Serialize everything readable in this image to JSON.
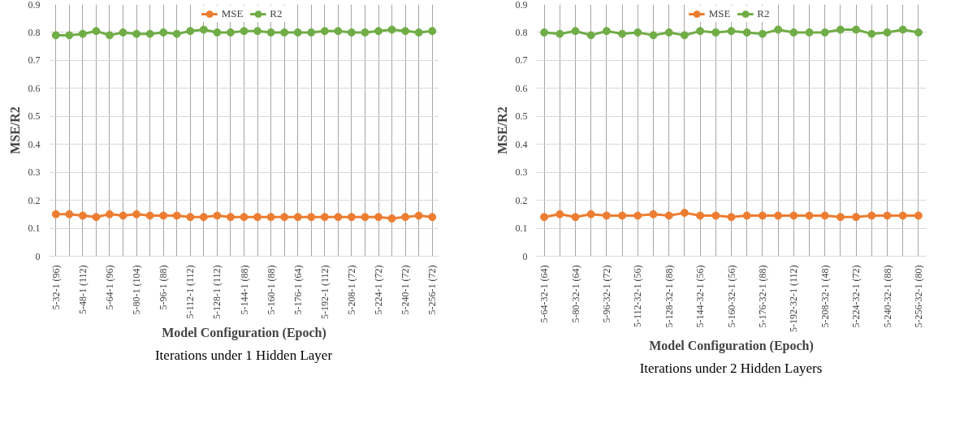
{
  "chart_data": [
    {
      "type": "line",
      "xlabel": "Model Configuration (Epoch)",
      "ylabel": "MSE/R2",
      "annotations": [
        "Iterations under 1 Hidden Layer"
      ],
      "categories": [
        "5-32-1 (96)",
        null,
        "5-48-1 (112)",
        null,
        "5-64-1 (96)",
        null,
        "5-80-1 (104)",
        null,
        "5-96-1 (88)",
        null,
        "5-112-1 (112)",
        null,
        "5-128-1 (112)",
        null,
        "5-144-1 (88)",
        null,
        "5-160-1 (88)",
        null,
        "5-176-1 (64)",
        null,
        "5-192-1 (112)",
        null,
        "5-208-1 (72)",
        null,
        "5-224-1 (72)",
        null,
        "5-240-1 (72)",
        null,
        "5-256-1 (72)"
      ],
      "series": [
        {
          "name": "MSE",
          "color": "#ed7d31",
          "values": [
            0.15,
            0.15,
            0.145,
            0.14,
            0.15,
            0.145,
            0.15,
            0.145,
            0.145,
            0.145,
            0.14,
            0.14,
            0.145,
            0.14,
            0.14,
            0.14,
            0.14,
            0.14,
            0.14,
            0.14,
            0.14,
            0.14,
            0.14,
            0.14,
            0.14,
            0.135,
            0.14,
            0.145,
            0.14
          ]
        },
        {
          "name": "R2",
          "color": "#70ad47",
          "values": [
            0.79,
            0.79,
            0.795,
            0.805,
            0.79,
            0.8,
            0.795,
            0.795,
            0.8,
            0.795,
            0.805,
            0.81,
            0.8,
            0.8,
            0.805,
            0.805,
            0.8,
            0.8,
            0.8,
            0.8,
            0.805,
            0.805,
            0.8,
            0.8,
            0.805,
            0.81,
            0.805,
            0.8,
            0.805
          ]
        }
      ],
      "ylim": [
        0,
        0.9
      ],
      "yticks": [
        0,
        0.1,
        0.2,
        0.3,
        0.4,
        0.5,
        0.6,
        0.7,
        0.8,
        0.9
      ],
      "grid": true,
      "legend": "top",
      "marker": "circle"
    },
    {
      "type": "line",
      "xlabel": "Model Configuration (Epoch)",
      "ylabel": "MSE/R2",
      "annotations": [
        "Iterations under 2 Hidden Layers"
      ],
      "categories": [
        "5-64-32-1 (64)",
        null,
        "5-80-32-1 (64)",
        null,
        "5-96-32-1 (72)",
        null,
        "5-112-32-1 (56)",
        null,
        "5-128-32-1 (88)",
        null,
        "5-144-32-1 (56)",
        null,
        "5-160-32-1 (56)",
        null,
        "5-176-32-1 (88)",
        null,
        "5-192-32-1 (112)",
        null,
        "5-208-32-1 (48)",
        null,
        "5-224-32-1 (72)",
        null,
        "5-240-32-1 (88)",
        null,
        "5-256-32-1 (80)"
      ],
      "series": [
        {
          "name": "MSE",
          "color": "#ed7d31",
          "values": [
            0.14,
            0.15,
            0.14,
            0.15,
            0.145,
            0.145,
            0.145,
            0.15,
            0.145,
            0.155,
            0.145,
            0.145,
            0.14,
            0.145,
            0.145,
            0.145,
            0.145,
            0.145,
            0.145,
            0.14,
            0.14,
            0.145,
            0.145,
            0.145,
            0.145
          ]
        },
        {
          "name": "R2",
          "color": "#70ad47",
          "values": [
            0.8,
            0.795,
            0.805,
            0.79,
            0.805,
            0.795,
            0.8,
            0.79,
            0.8,
            0.79,
            0.805,
            0.8,
            0.805,
            0.8,
            0.795,
            0.81,
            0.8,
            0.8,
            0.8,
            0.81,
            0.81,
            0.795,
            0.8,
            0.81,
            0.8
          ]
        }
      ],
      "ylim": [
        0,
        0.9
      ],
      "yticks": [
        0,
        0.1,
        0.2,
        0.3,
        0.4,
        0.5,
        0.6,
        0.7,
        0.8,
        0.9
      ],
      "grid": true,
      "legend": "top",
      "marker": "circle"
    }
  ]
}
